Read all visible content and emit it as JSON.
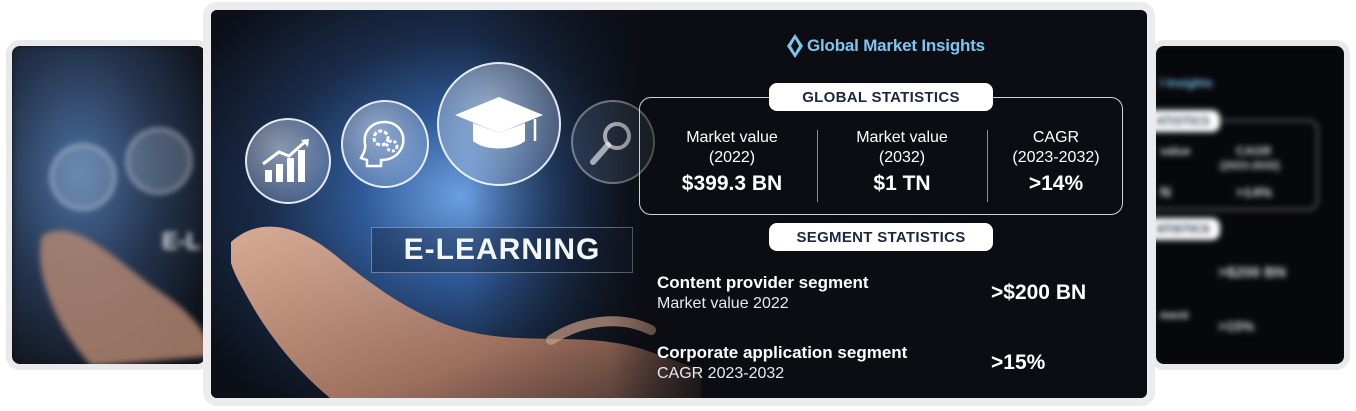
{
  "brand": {
    "name": "Global Market Insights",
    "color": "#7fc6ef"
  },
  "hero": {
    "label": "E-LEARNING",
    "icons": [
      "growth-chart-icon",
      "gears-head-icon",
      "graduation-cap-icon",
      "magnifier-icon"
    ]
  },
  "global_statistics": {
    "heading": "GLOBAL STATISTICS",
    "items": [
      {
        "label_line1": "Market value",
        "label_line2": "(2022)",
        "value": "$399.3 BN"
      },
      {
        "label_line1": "Market value",
        "label_line2": "(2032)",
        "value": "$1 TN"
      },
      {
        "label_line1": "CAGR",
        "label_line2": "(2023-2032)",
        "value": ">14%"
      }
    ]
  },
  "segment_statistics": {
    "heading": "SEGMENT STATISTICS",
    "items": [
      {
        "title": "Content provider segment",
        "subtitle": "Market value 2022",
        "value": ">$200 BN"
      },
      {
        "title": "Corporate application segment",
        "subtitle": "CAGR 2023-2032",
        "value": ">15%"
      }
    ]
  },
  "side_right": {
    "brand_fragment": "l Insights",
    "pill1": "ATISTICS",
    "pill2": "ATISTICS",
    "label_frag": "value",
    "value_frag": "N",
    "cagr_label": "CAGR",
    "cagr_range": "(2023-2032)",
    "cagr_value": ">14%",
    "seg_value1": ">$200 BN",
    "seg_frag": "ment",
    "seg_value2": ">15%"
  },
  "side_left": {
    "label_frag": "E-L"
  }
}
